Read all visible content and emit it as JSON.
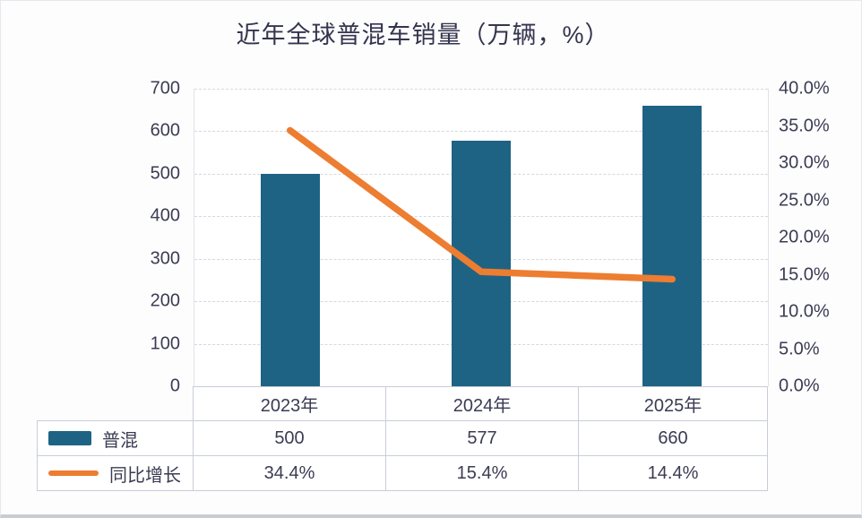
{
  "title": "近年全球普混车销量（万辆，%）",
  "colors": {
    "bar": "#1f6384",
    "line": "#ed7d31",
    "text": "#3b3b53",
    "grid": "#d6d8de",
    "table_border": "#c9cdd8"
  },
  "chart_data": {
    "type": "bar",
    "subtype": "bar+line-combo",
    "title": "近年全球普混车销量（万辆，%）",
    "categories": [
      "2023年",
      "2024年",
      "2025年"
    ],
    "series": [
      {
        "name": "普混",
        "type": "bar",
        "axis": "left",
        "values": [
          500,
          577,
          660
        ],
        "display": [
          "500",
          "577",
          "660"
        ]
      },
      {
        "name": "同比增长",
        "type": "line",
        "axis": "right",
        "values": [
          34.4,
          15.4,
          14.4
        ],
        "display": [
          "34.4%",
          "15.4%",
          "14.4%"
        ]
      }
    ],
    "left_axis": {
      "min": 0,
      "max": 700,
      "step": 100,
      "ticks": [
        "700",
        "600",
        "500",
        "400",
        "300",
        "200",
        "100",
        "0"
      ]
    },
    "right_axis": {
      "min": 0,
      "max": 40,
      "step": 5,
      "ticks": [
        "40.0%",
        "35.0%",
        "30.0%",
        "25.0%",
        "20.0%",
        "15.0%",
        "10.0%",
        "5.0%",
        "0.0%"
      ]
    },
    "grid": true,
    "legend_position": "table-left"
  }
}
